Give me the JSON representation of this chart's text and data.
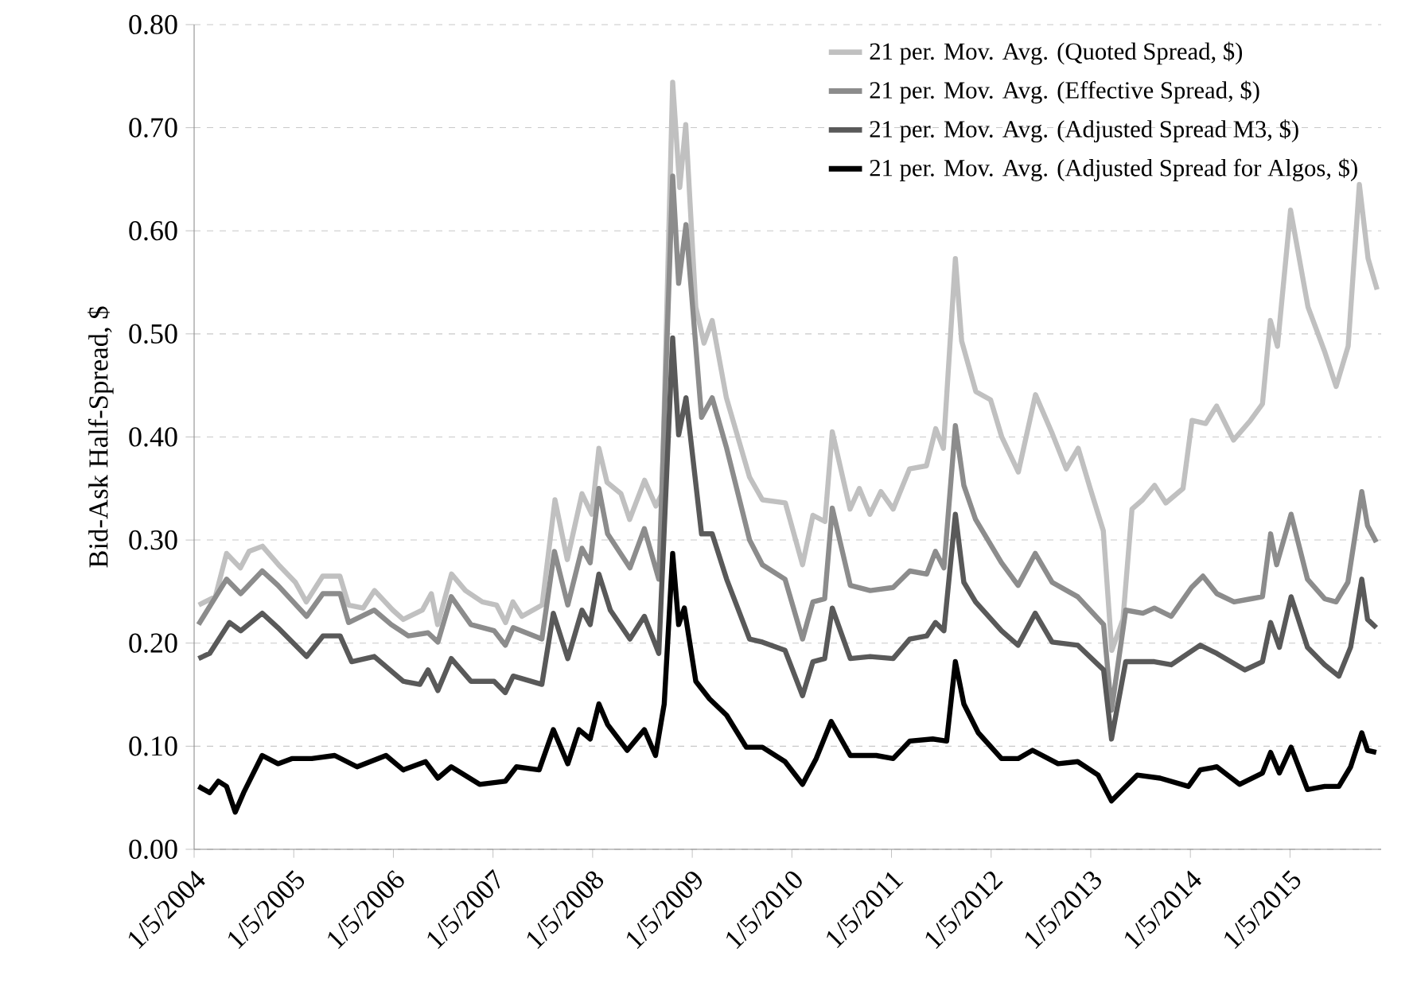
{
  "chart_data": {
    "type": "line",
    "ylabel": "Bid-Ask Half-Spread, $",
    "xlim": [
      "2004-01-05",
      "2015-12-05"
    ],
    "ylim": [
      0,
      0.8
    ],
    "xticks": [
      {
        "value": "2004-01-05",
        "label": "1/5/2004"
      },
      {
        "value": "2005-01-05",
        "label": "1/5/2005"
      },
      {
        "value": "2006-01-05",
        "label": "1/5/2006"
      },
      {
        "value": "2007-01-05",
        "label": "1/5/2007"
      },
      {
        "value": "2008-01-05",
        "label": "1/5/2008"
      },
      {
        "value": "2009-01-05",
        "label": "1/5/2009"
      },
      {
        "value": "2010-01-05",
        "label": "1/5/2010"
      },
      {
        "value": "2011-01-05",
        "label": "1/5/2011"
      },
      {
        "value": "2012-01-05",
        "label": "1/5/2012"
      },
      {
        "value": "2013-01-05",
        "label": "1/5/2013"
      },
      {
        "value": "2014-01-05",
        "label": "1/5/2014"
      },
      {
        "value": "2015-01-05",
        "label": "1/5/2015"
      }
    ],
    "yticks": [
      {
        "value": 0,
        "label": "0.00"
      },
      {
        "value": 0.1,
        "label": "0.10"
      },
      {
        "value": 0.2,
        "label": "0.20"
      },
      {
        "value": 0.3,
        "label": "0.30"
      },
      {
        "value": 0.4,
        "label": "0.40"
      },
      {
        "value": 0.5,
        "label": "0.50"
      },
      {
        "value": 0.6,
        "label": "0.60"
      },
      {
        "value": 0.7,
        "label": "0.70"
      },
      {
        "value": 0.8,
        "label": "0.80"
      }
    ],
    "grid": "y",
    "legend": "top right",
    "marker": "none",
    "line_style": "solid",
    "series": [
      {
        "name": "21 per. Mov. Avg. (Quoted Spread, $)",
        "color": "#c0c0c0",
        "x": [
          "2004-01-22",
          "2004-03-23",
          "2004-05-03",
          "2004-06-23",
          "2004-07-25",
          "2004-09-12",
          "2004-11-10",
          "2005-01-11",
          "2005-02-20",
          "2005-04-21",
          "2005-06-23",
          "2005-07-25",
          "2005-09-16",
          "2005-10-28",
          "2006-01-03",
          "2006-02-10",
          "2006-04-21",
          "2006-05-24",
          "2006-06-16",
          "2006-08-06",
          "2006-09-26",
          "2006-11-27",
          "2007-01-18",
          "2007-02-20",
          "2007-03-19",
          "2007-04-21",
          "2007-07-04",
          "2007-08-20",
          "2007-10-04",
          "2007-11-27",
          "2008-01-02",
          "2008-01-28",
          "2008-02-27",
          "2008-04-18",
          "2008-05-20",
          "2008-07-14",
          "2008-08-24",
          "2008-09-16",
          "2008-10-25",
          "2008-11-20",
          "2008-12-12",
          "2009-01-18",
          "2009-02-17",
          "2009-03-19",
          "2009-05-10",
          "2009-08-03",
          "2009-09-19",
          "2009-12-12",
          "2010-02-13",
          "2010-03-23",
          "2010-05-06",
          "2010-06-02",
          "2010-08-06",
          "2010-09-09",
          "2010-10-18",
          "2010-11-27",
          "2011-01-11",
          "2011-03-12",
          "2011-05-13",
          "2011-06-16",
          "2011-07-14",
          "2011-08-27",
          "2011-09-19",
          "2011-11-10",
          "2012-01-03",
          "2012-02-13",
          "2012-04-14",
          "2012-06-16",
          "2012-08-17",
          "2012-10-07",
          "2012-11-20",
          "2013-01-03",
          "2013-02-20",
          "2013-03-23",
          "2013-05-03",
          "2013-06-05",
          "2013-07-14",
          "2013-08-27",
          "2013-10-07",
          "2013-12-09",
          "2014-01-11",
          "2014-03-02",
          "2014-04-11",
          "2014-06-12",
          "2014-08-13",
          "2014-09-26",
          "2014-10-25",
          "2014-11-20",
          "2015-01-07",
          "2015-03-12",
          "2015-05-13",
          "2015-06-23",
          "2015-08-06",
          "2015-09-16",
          "2015-10-18",
          "2015-11-20"
        ],
        "values": [
          0.237,
          0.245,
          0.287,
          0.273,
          0.289,
          0.294,
          0.276,
          0.259,
          0.24,
          0.265,
          0.265,
          0.237,
          0.234,
          0.251,
          0.232,
          0.223,
          0.232,
          0.248,
          0.218,
          0.267,
          0.251,
          0.24,
          0.237,
          0.22,
          0.24,
          0.226,
          0.237,
          0.339,
          0.281,
          0.345,
          0.325,
          0.389,
          0.356,
          0.345,
          0.32,
          0.358,
          0.333,
          0.345,
          0.744,
          0.642,
          0.703,
          0.526,
          0.491,
          0.513,
          0.438,
          0.361,
          0.339,
          0.336,
          0.276,
          0.324,
          0.318,
          0.405,
          0.33,
          0.35,
          0.325,
          0.347,
          0.33,
          0.369,
          0.372,
          0.408,
          0.389,
          0.573,
          0.493,
          0.444,
          0.436,
          0.4,
          0.366,
          0.441,
          0.403,
          0.369,
          0.389,
          0.35,
          0.309,
          0.193,
          0.223,
          0.33,
          0.339,
          0.353,
          0.336,
          0.35,
          0.416,
          0.413,
          0.43,
          0.397,
          0.416,
          0.432,
          0.513,
          0.488,
          0.62,
          0.526,
          0.482,
          0.449,
          0.488,
          0.645,
          0.573,
          0.543
        ]
      },
      {
        "name": "21 per. Mov. Avg. (Effective Spread, $)",
        "color": "#8c8c8c",
        "x": [
          "2004-01-21",
          "2004-05-03",
          "2004-06-24",
          "2004-09-11",
          "2004-11-08",
          "2005-02-21",
          "2005-04-22",
          "2005-06-24",
          "2005-07-25",
          "2005-10-27",
          "2005-12-28",
          "2006-03-01",
          "2006-05-12",
          "2006-06-17",
          "2006-08-05",
          "2006-10-16",
          "2007-01-09",
          "2007-02-19",
          "2007-03-20",
          "2007-07-03",
          "2007-08-18",
          "2007-10-06",
          "2007-11-27",
          "2007-12-27",
          "2008-01-28",
          "2008-02-29",
          "2008-05-21",
          "2008-07-13",
          "2008-09-04",
          "2008-10-25",
          "2008-11-16",
          "2008-12-13",
          "2009-02-08",
          "2009-03-19",
          "2009-05-11",
          "2009-08-03",
          "2009-09-19",
          "2009-12-11",
          "2010-02-13",
          "2010-03-23",
          "2010-05-05",
          "2010-06-02",
          "2010-08-07",
          "2010-10-19",
          "2011-01-11",
          "2011-03-13",
          "2011-05-14",
          "2011-06-15",
          "2011-07-16",
          "2011-08-27",
          "2011-09-27",
          "2011-11-09",
          "2012-02-12",
          "2012-04-13",
          "2012-06-15",
          "2012-08-16",
          "2012-11-18",
          "2013-02-21",
          "2013-03-22",
          "2013-05-13",
          "2013-07-15",
          "2013-08-26",
          "2013-10-27",
          "2014-01-09",
          "2014-02-20",
          "2014-04-12",
          "2014-06-14",
          "2014-08-15",
          "2014-09-26",
          "2014-10-26",
          "2014-11-17",
          "2015-01-09",
          "2015-03-10",
          "2015-05-12",
          "2015-06-23",
          "2015-08-05",
          "2015-09-25",
          "2015-10-16",
          "2015-11-17"
        ],
        "values": [
          0.218,
          0.262,
          0.248,
          0.27,
          0.256,
          0.226,
          0.248,
          0.248,
          0.22,
          0.232,
          0.218,
          0.207,
          0.21,
          0.201,
          0.245,
          0.218,
          0.212,
          0.198,
          0.215,
          0.204,
          0.289,
          0.237,
          0.292,
          0.278,
          0.35,
          0.306,
          0.273,
          0.311,
          0.262,
          0.653,
          0.549,
          0.606,
          0.419,
          0.438,
          0.389,
          0.3,
          0.276,
          0.262,
          0.204,
          0.24,
          0.243,
          0.331,
          0.256,
          0.251,
          0.254,
          0.27,
          0.267,
          0.289,
          0.273,
          0.411,
          0.353,
          0.32,
          0.278,
          0.256,
          0.287,
          0.259,
          0.245,
          0.218,
          0.135,
          0.232,
          0.229,
          0.234,
          0.226,
          0.254,
          0.265,
          0.248,
          0.24,
          0.243,
          0.245,
          0.306,
          0.276,
          0.325,
          0.262,
          0.243,
          0.24,
          0.259,
          0.347,
          0.314,
          0.298
        ]
      },
      {
        "name": "21 per. Mov. Avg. (Adjusted Spread M3, $)",
        "color": "#595959",
        "x": [
          "2004-01-21",
          "2004-03-02",
          "2004-05-14",
          "2004-06-24",
          "2004-09-11",
          "2004-11-08",
          "2005-02-21",
          "2005-04-22",
          "2005-06-24",
          "2005-08-05",
          "2005-10-27",
          "2006-02-10",
          "2006-04-12",
          "2006-05-12",
          "2006-06-17",
          "2006-08-05",
          "2006-10-16",
          "2007-01-09",
          "2007-02-19",
          "2007-03-20",
          "2007-07-03",
          "2007-08-14",
          "2007-10-06",
          "2007-11-27",
          "2007-12-27",
          "2008-01-28",
          "2008-03-10",
          "2008-05-21",
          "2008-07-13",
          "2008-09-04",
          "2008-10-25",
          "2008-11-16",
          "2008-12-13",
          "2009-02-08",
          "2009-03-19",
          "2009-05-11",
          "2009-08-03",
          "2009-09-19",
          "2009-12-11",
          "2010-02-13",
          "2010-03-23",
          "2010-05-05",
          "2010-06-02",
          "2010-08-07",
          "2010-10-19",
          "2011-01-11",
          "2011-03-13",
          "2011-05-14",
          "2011-06-15",
          "2011-07-16",
          "2011-08-27",
          "2011-09-27",
          "2011-11-09",
          "2012-02-12",
          "2012-04-13",
          "2012-06-15",
          "2012-08-16",
          "2012-11-18",
          "2013-02-21",
          "2013-03-22",
          "2013-05-13",
          "2013-08-26",
          "2013-10-27",
          "2014-02-10",
          "2014-04-12",
          "2014-07-24",
          "2014-09-26",
          "2014-10-26",
          "2014-11-27",
          "2015-01-09",
          "2015-03-10",
          "2015-05-12",
          "2015-07-03",
          "2015-08-15",
          "2015-09-25",
          "2015-10-16",
          "2015-11-17"
        ],
        "values": [
          0.185,
          0.19,
          0.22,
          0.212,
          0.229,
          0.215,
          0.187,
          0.207,
          0.207,
          0.182,
          0.187,
          0.163,
          0.16,
          0.174,
          0.154,
          0.185,
          0.163,
          0.163,
          0.152,
          0.168,
          0.16,
          0.229,
          0.185,
          0.232,
          0.218,
          0.267,
          0.232,
          0.204,
          0.226,
          0.19,
          0.496,
          0.402,
          0.438,
          0.306,
          0.306,
          0.262,
          0.204,
          0.201,
          0.193,
          0.149,
          0.182,
          0.185,
          0.234,
          0.185,
          0.187,
          0.185,
          0.204,
          0.207,
          0.22,
          0.212,
          0.325,
          0.259,
          0.24,
          0.212,
          0.198,
          0.229,
          0.201,
          0.198,
          0.174,
          0.107,
          0.182,
          0.182,
          0.179,
          0.198,
          0.19,
          0.174,
          0.182,
          0.22,
          0.196,
          0.245,
          0.196,
          0.179,
          0.168,
          0.196,
          0.262,
          0.223,
          0.215
        ]
      },
      {
        "name": "21 per. Mov. Avg. (Adjusted Spread for Algos, $)",
        "color": "#000000",
        "x": [
          "2004-01-21",
          "2004-03-02",
          "2004-04-03",
          "2004-05-03",
          "2004-06-04",
          "2004-07-05",
          "2004-08-06",
          "2004-09-11",
          "2004-11-08",
          "2004-12-29",
          "2005-03-12",
          "2005-06-04",
          "2005-08-25",
          "2005-12-09",
          "2006-02-10",
          "2006-05-03",
          "2006-06-17",
          "2006-08-05",
          "2006-11-17",
          "2007-02-19",
          "2007-04-01",
          "2007-06-23",
          "2007-08-14",
          "2007-10-06",
          "2007-11-16",
          "2007-12-27",
          "2008-01-28",
          "2008-02-29",
          "2008-05-11",
          "2008-07-13",
          "2008-08-23",
          "2008-09-24",
          "2008-10-25",
          "2008-11-16",
          "2008-12-07",
          "2009-01-18",
          "2009-03-09",
          "2009-05-11",
          "2009-07-22",
          "2009-09-19",
          "2009-12-11",
          "2010-02-13",
          "2010-04-04",
          "2010-05-29",
          "2010-08-07",
          "2010-11-10",
          "2011-01-11",
          "2011-03-13",
          "2011-06-05",
          "2011-07-26",
          "2011-08-27",
          "2011-09-27",
          "2011-11-19",
          "2012-02-12",
          "2012-04-13",
          "2012-06-05",
          "2012-09-07",
          "2012-11-18",
          "2013-02-01",
          "2013-03-22",
          "2013-06-24",
          "2013-09-16",
          "2013-12-29",
          "2014-02-10",
          "2014-04-12",
          "2014-07-04",
          "2014-09-26",
          "2014-10-26",
          "2014-11-27",
          "2015-01-09",
          "2015-03-10",
          "2015-05-12",
          "2015-07-03",
          "2015-08-15",
          "2015-09-25",
          "2015-10-16",
          "2015-11-17"
        ],
        "values": [
          0.061,
          0.055,
          0.066,
          0.061,
          0.036,
          0.055,
          0.072,
          0.091,
          0.083,
          0.088,
          0.088,
          0.091,
          0.08,
          0.091,
          0.077,
          0.085,
          0.069,
          0.08,
          0.063,
          0.066,
          0.08,
          0.077,
          0.116,
          0.083,
          0.116,
          0.107,
          0.141,
          0.121,
          0.096,
          0.116,
          0.091,
          0.141,
          0.287,
          0.218,
          0.234,
          0.163,
          0.146,
          0.13,
          0.099,
          0.099,
          0.085,
          0.063,
          0.088,
          0.124,
          0.091,
          0.091,
          0.088,
          0.105,
          0.107,
          0.105,
          0.182,
          0.141,
          0.113,
          0.088,
          0.088,
          0.096,
          0.083,
          0.085,
          0.072,
          0.047,
          0.072,
          0.069,
          0.061,
          0.077,
          0.08,
          0.063,
          0.074,
          0.094,
          0.074,
          0.099,
          0.058,
          0.061,
          0.061,
          0.08,
          0.113,
          0.096,
          0.094
        ]
      }
    ]
  }
}
